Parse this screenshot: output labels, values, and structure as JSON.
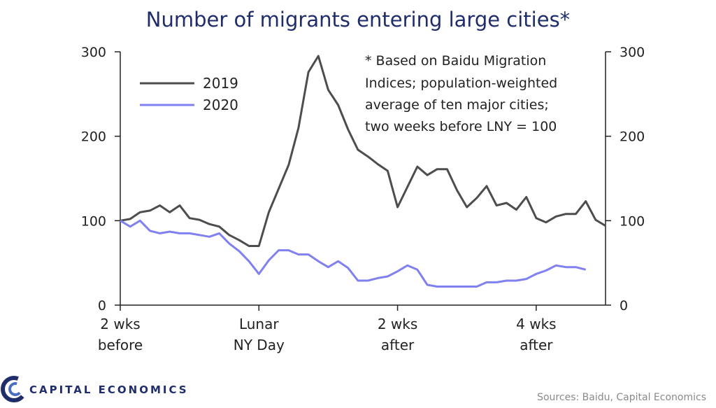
{
  "chart_data": {
    "type": "line",
    "title": "Number of migrants entering large cities*",
    "ylim": [
      0,
      300
    ],
    "y_ticks": [
      "0",
      "100",
      "200",
      "300"
    ],
    "x_ticks": [
      {
        "index": 0,
        "lines": [
          "2 wks",
          "before"
        ]
      },
      {
        "index": 14,
        "lines": [
          "Lunar",
          "NY Day"
        ]
      },
      {
        "index": 28,
        "lines": [
          "2 wks",
          "after"
        ]
      },
      {
        "index": 42,
        "lines": [
          "4 wks",
          "after"
        ]
      }
    ],
    "series": [
      {
        "name": "2019",
        "color": "#4d4d4d",
        "values": [
          100,
          102,
          110,
          112,
          118,
          110,
          118,
          103,
          101,
          96,
          93,
          83,
          77,
          70,
          70,
          110,
          138,
          166,
          210,
          276,
          295,
          255,
          237,
          208,
          184,
          176,
          167,
          159,
          116,
          140,
          164,
          154,
          161,
          161,
          136,
          116,
          127,
          141,
          118,
          121,
          113,
          128,
          103,
          98,
          105,
          108,
          108,
          123,
          101,
          94
        ]
      },
      {
        "name": "2020",
        "color": "#8080f0",
        "values": [
          100,
          93,
          100,
          88,
          85,
          87,
          85,
          85,
          83,
          81,
          85,
          73,
          64,
          52,
          37,
          53,
          65,
          65,
          60,
          60,
          52,
          45,
          52,
          44,
          29,
          29,
          32,
          34,
          40,
          47,
          42,
          24,
          22,
          22,
          22,
          22,
          22,
          27,
          27,
          29,
          29,
          31,
          37,
          41,
          47,
          45,
          45,
          42
        ]
      }
    ],
    "legend": [
      "2019",
      "2020"
    ],
    "note_lines": [
      "* Based on  Baidu Migration",
      "Indices;  population-weighted",
      "average of ten major cities;",
      "two weeks before LNY = 100"
    ],
    "source": "Sources: Baidu, Capital Economics"
  },
  "brand": {
    "name": "CAPITAL ECONOMICS",
    "primary_color": "#1f2d6b",
    "accent_color": "#4a6fc1"
  }
}
